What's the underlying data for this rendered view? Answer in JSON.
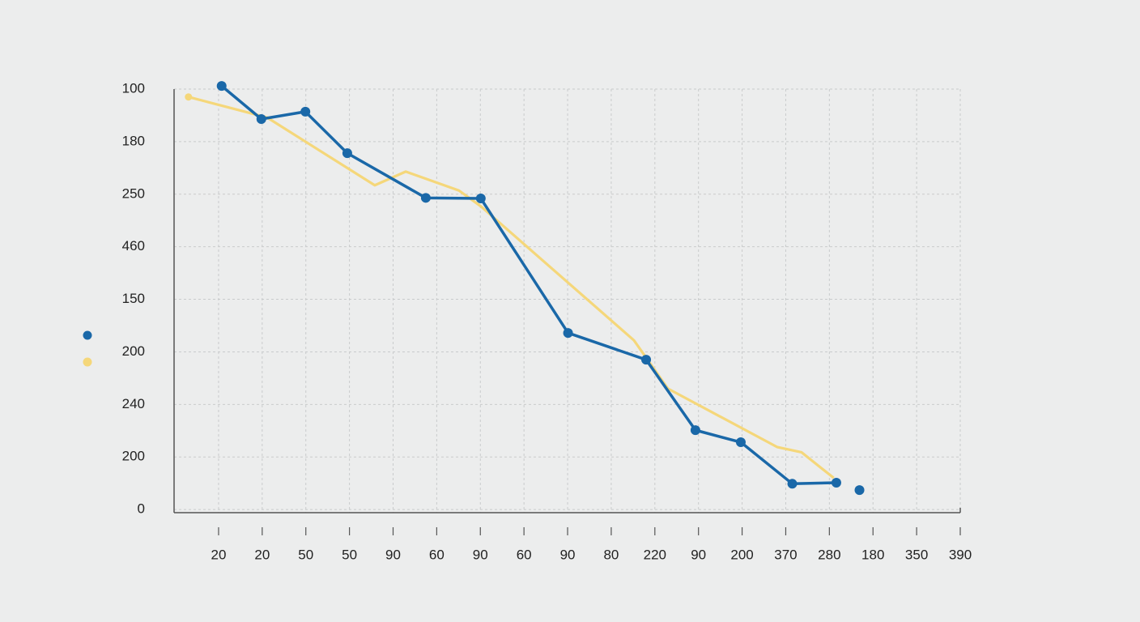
{
  "chart_data": {
    "type": "line",
    "categories": [
      "20",
      "20",
      "50",
      "50",
      "90",
      "60",
      "90",
      "60",
      "90",
      "80",
      "220",
      "90",
      "200",
      "370",
      "280",
      "180",
      "350",
      "390"
    ],
    "xlim": [
      -1.02,
      17
    ],
    "ylim": [
      -0.06,
      8
    ],
    "yticks": [
      {
        "value": 0,
        "label": "0"
      },
      {
        "value": 1,
        "label": "200"
      },
      {
        "value": 2,
        "label": "240"
      },
      {
        "value": 3,
        "label": "200"
      },
      {
        "value": 4,
        "label": "150"
      },
      {
        "value": 5,
        "label": "460"
      },
      {
        "value": 6,
        "label": "250"
      },
      {
        "value": 7,
        "label": "180"
      },
      {
        "value": 8,
        "label": "100"
      }
    ],
    "grid": true,
    "series": [
      {
        "color": "#f5d77a",
        "markers": false,
        "x": [
          -0.69,
          1.11,
          3.58,
          4.29,
          5.51,
          6.01,
          9.52,
          10.3,
          12.8,
          13.36,
          14.1
        ],
        "values": [
          7.85,
          7.46,
          6.17,
          6.43,
          6.07,
          5.77,
          3.22,
          2.3,
          1.19,
          1.09,
          0.6
        ]
      },
      {
        "color": "#1a68a8",
        "markers": true,
        "x": [
          0.07,
          0.98,
          1.99,
          2.95,
          4.75,
          6.01,
          8.01,
          9.8,
          10.93,
          11.97,
          13.15,
          14.16,
          14.4,
          14.69
        ],
        "values": [
          8.06,
          7.43,
          7.57,
          6.78,
          5.93,
          5.92,
          3.36,
          2.85,
          1.51,
          1.28,
          0.49,
          0.51,
          null,
          0.37
        ]
      }
    ]
  }
}
